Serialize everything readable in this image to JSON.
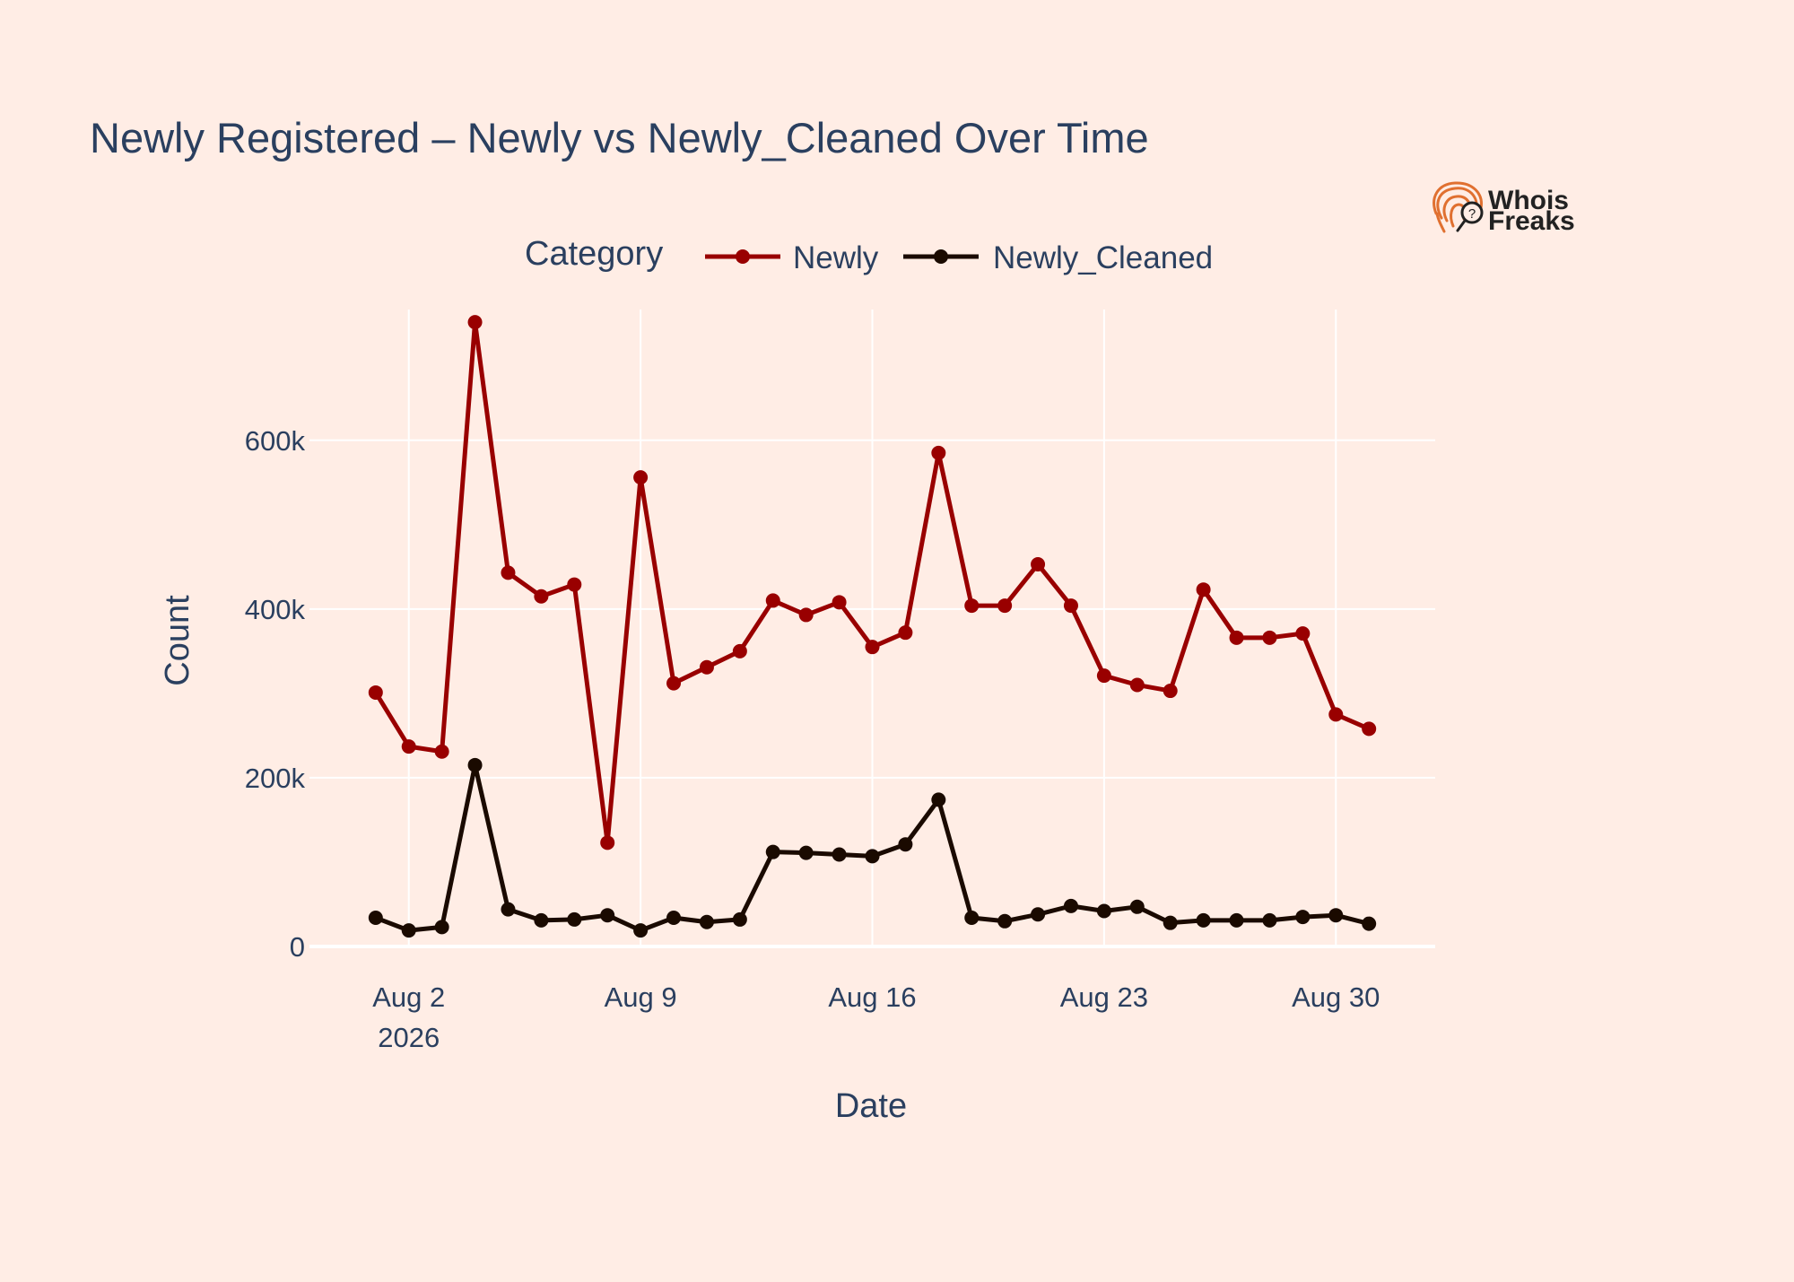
{
  "chart_data": {
    "type": "line",
    "title": "Newly Registered – Newly vs Newly_Cleaned Over Time",
    "xlabel": "Date",
    "ylabel": "Count",
    "x": [
      "2026-08-01",
      "2026-08-02",
      "2026-08-03",
      "2026-08-04",
      "2026-08-05",
      "2026-08-06",
      "2026-08-07",
      "2026-08-08",
      "2026-08-09",
      "2026-08-10",
      "2026-08-11",
      "2026-08-12",
      "2026-08-13",
      "2026-08-14",
      "2026-08-15",
      "2026-08-16",
      "2026-08-17",
      "2026-08-18",
      "2026-08-19",
      "2026-08-20",
      "2026-08-21",
      "2026-08-22",
      "2026-08-23",
      "2026-08-24",
      "2026-08-25",
      "2026-08-26",
      "2026-08-27",
      "2026-08-28",
      "2026-08-29",
      "2026-08-30",
      "2026-08-31"
    ],
    "series": [
      {
        "name": "Newly",
        "color": "#990000",
        "values": [
          301000,
          237000,
          231000,
          740000,
          443000,
          415000,
          429000,
          123000,
          556000,
          312000,
          331000,
          350000,
          410000,
          393000,
          408000,
          355000,
          372000,
          585000,
          404000,
          404000,
          453000,
          404000,
          321000,
          310000,
          303000,
          423000,
          366000,
          366000,
          371000,
          275000,
          258000
        ]
      },
      {
        "name": "Newly_Cleaned",
        "color": "#1a0a00",
        "values": [
          34000,
          19000,
          23000,
          215000,
          44000,
          31000,
          32000,
          37000,
          19000,
          34000,
          29000,
          32000,
          112000,
          111000,
          109000,
          107000,
          121000,
          174000,
          34000,
          30000,
          38000,
          48000,
          42000,
          47000,
          28000,
          31000,
          31000,
          31000,
          35000,
          37000,
          27000
        ]
      }
    ],
    "x_ticks": [
      {
        "date": "2026-08-02",
        "label": "Aug 2",
        "sublabel": "2026"
      },
      {
        "date": "2026-08-09",
        "label": "Aug 9",
        "sublabel": ""
      },
      {
        "date": "2026-08-16",
        "label": "Aug 16",
        "sublabel": ""
      },
      {
        "date": "2026-08-23",
        "label": "Aug 23",
        "sublabel": ""
      },
      {
        "date": "2026-08-30",
        "label": "Aug 30",
        "sublabel": ""
      }
    ],
    "y_ticks": [
      {
        "value": 0,
        "label": "0"
      },
      {
        "value": 200000,
        "label": "200k"
      },
      {
        "value": 400000,
        "label": "400k"
      },
      {
        "value": 600000,
        "label": "600k"
      }
    ],
    "ylim": [
      0,
      800000
    ],
    "xlim": [
      "2026-07-30",
      "2026-09-02"
    ],
    "grid": true,
    "legend": {
      "title": "Category",
      "placement": "top-center",
      "orientation": "horizontal"
    }
  },
  "logo": {
    "line1": "Whois",
    "line2": "Freaks",
    "icon": "fingerprint-search-icon",
    "color": "#e07030"
  }
}
